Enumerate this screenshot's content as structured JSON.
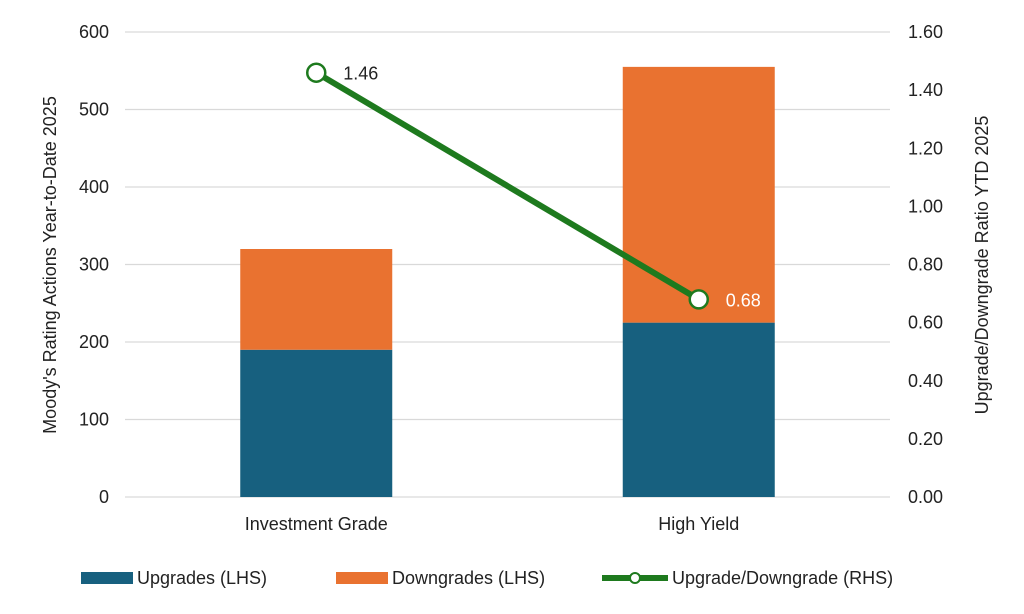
{
  "chart_data": {
    "type": "bar",
    "stacked": true,
    "categories": [
      "Investment Grade",
      "High Yield"
    ],
    "series": [
      {
        "name": "Upgrades (LHS)",
        "axis": "left",
        "kind": "bar",
        "color": "#17607f",
        "values": [
          190,
          225
        ]
      },
      {
        "name": "Downgrades (LHS)",
        "axis": "left",
        "kind": "bar",
        "color": "#e97230",
        "values": [
          130,
          330
        ]
      },
      {
        "name": "Upgrade/Downgrade (RHS)",
        "axis": "right",
        "kind": "line",
        "color": "#1e7a1e",
        "values": [
          1.46,
          0.68
        ],
        "data_labels": [
          "1.46",
          "0.68"
        ]
      }
    ],
    "ylabel": "Moody's Rating Actions Year-to-Date 2025",
    "y2label": "Upgrade/Downgrade Ratio  YTD 2025",
    "ylim": [
      0,
      600
    ],
    "y2lim": [
      0,
      1.6
    ],
    "yticks": [
      "0",
      "100",
      "200",
      "300",
      "400",
      "500",
      "600"
    ],
    "y2ticks": [
      "0.00",
      "0.20",
      "0.40",
      "0.60",
      "0.80",
      "1.00",
      "1.20",
      "1.40",
      "1.60"
    ],
    "grid": true,
    "legend": "bottom"
  }
}
